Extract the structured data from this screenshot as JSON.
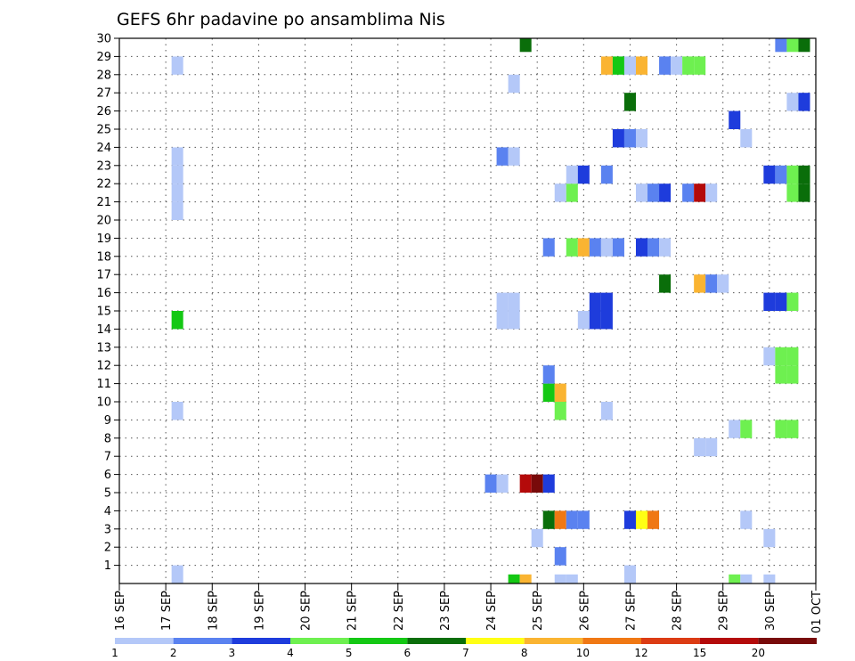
{
  "chart_data": {
    "type": "heatmap",
    "title": "GEFS 6hr padavine po ansamblima Nis",
    "x_tick_labels": [
      "16 SEP",
      "17 SEP",
      "18 SEP",
      "19 SEP",
      "20 SEP",
      "21 SEP",
      "22 SEP",
      "23 SEP",
      "24 SEP",
      "25 SEP",
      "26 SEP",
      "27 SEP",
      "28 SEP",
      "29 SEP",
      "30 SEP",
      "01 OCT"
    ],
    "y_tick_labels": [
      "1",
      "2",
      "3",
      "4",
      "5",
      "6",
      "7",
      "8",
      "9",
      "10",
      "11",
      "12",
      "13",
      "14",
      "15",
      "16",
      "17",
      "18",
      "19",
      "20",
      "21",
      "22",
      "23",
      "24",
      "25",
      "26",
      "27",
      "28",
      "29",
      "30"
    ],
    "x_range_days": [
      0,
      15
    ],
    "y_range": [
      0,
      30
    ],
    "grid": true,
    "colorbar": {
      "labels": [
        "1",
        "2",
        "3",
        "4",
        "5",
        "6",
        "7",
        "8",
        "10",
        "12",
        "15",
        "20"
      ],
      "colors": [
        "#b4c8f8",
        "#5a82f0",
        "#1e3cdc",
        "#6ef050",
        "#14c814",
        "#0a6e0a",
        "#ffff14",
        "#fab432",
        "#f07814",
        "#dc3c14",
        "#b40a0a",
        "#780a0a"
      ]
    },
    "cells": [
      {
        "day": 1.25,
        "y": 0.5,
        "v": 1
      },
      {
        "day": 1.25,
        "y": 9.5,
        "v": 1
      },
      {
        "day": 1.25,
        "y": 14.5,
        "v": 5
      },
      {
        "day": 1.25,
        "y": 20.5,
        "v": 1
      },
      {
        "day": 1.25,
        "y": 21.5,
        "v": 1
      },
      {
        "day": 1.25,
        "y": 22.5,
        "v": 1
      },
      {
        "day": 1.25,
        "y": 23.5,
        "v": 1
      },
      {
        "day": 1.25,
        "y": 28.5,
        "v": 1
      },
      {
        "day": 8.0,
        "y": 5.5,
        "v": 2
      },
      {
        "day": 8.25,
        "y": 5.5,
        "v": 1
      },
      {
        "day": 8.25,
        "y": 14.5,
        "v": 1
      },
      {
        "day": 8.5,
        "y": 14.5,
        "v": 1
      },
      {
        "day": 8.25,
        "y": 15.5,
        "v": 1
      },
      {
        "day": 8.5,
        "y": 15.5,
        "v": 1
      },
      {
        "day": 8.25,
        "y": 23.5,
        "v": 2
      },
      {
        "day": 8.5,
        "y": 23.5,
        "v": 1
      },
      {
        "day": 8.5,
        "y": 0.0,
        "v": 5
      },
      {
        "day": 8.75,
        "y": 0.0,
        "v": 8
      },
      {
        "day": 8.5,
        "y": 27.5,
        "v": 1
      },
      {
        "day": 8.75,
        "y": 5.5,
        "v": 15
      },
      {
        "day": 9.0,
        "y": 5.5,
        "v": 20
      },
      {
        "day": 9.25,
        "y": 5.5,
        "v": 3
      },
      {
        "day": 8.75,
        "y": 29.75,
        "v": 6
      },
      {
        "day": 9.0,
        "y": 2.5,
        "v": 1
      },
      {
        "day": 9.25,
        "y": 3.5,
        "v": 6
      },
      {
        "day": 9.5,
        "y": 3.5,
        "v": 10
      },
      {
        "day": 9.75,
        "y": 3.5,
        "v": 2
      },
      {
        "day": 10.0,
        "y": 3.5,
        "v": 2
      },
      {
        "day": 9.25,
        "y": 10.5,
        "v": 5
      },
      {
        "day": 9.5,
        "y": 10.5,
        "v": 8
      },
      {
        "day": 9.5,
        "y": 9.5,
        "v": 4
      },
      {
        "day": 9.25,
        "y": 11.5,
        "v": 2
      },
      {
        "day": 9.25,
        "y": 18.5,
        "v": 2
      },
      {
        "day": 9.5,
        "y": 1.5,
        "v": 2
      },
      {
        "day": 9.5,
        "y": 0.0,
        "v": 1
      },
      {
        "day": 9.75,
        "y": 0.0,
        "v": 1
      },
      {
        "day": 9.5,
        "y": 21.5,
        "v": 1
      },
      {
        "day": 9.75,
        "y": 21.5,
        "v": 4
      },
      {
        "day": 9.75,
        "y": 18.5,
        "v": 4
      },
      {
        "day": 10.0,
        "y": 18.5,
        "v": 8
      },
      {
        "day": 10.25,
        "y": 18.5,
        "v": 2
      },
      {
        "day": 10.5,
        "y": 18.5,
        "v": 1
      },
      {
        "day": 10.75,
        "y": 18.5,
        "v": 2
      },
      {
        "day": 9.75,
        "y": 22.5,
        "v": 1
      },
      {
        "day": 10.0,
        "y": 22.5,
        "v": 3
      },
      {
        "day": 10.5,
        "y": 22.5,
        "v": 2
      },
      {
        "day": 10.0,
        "y": 14.5,
        "v": 1
      },
      {
        "day": 10.25,
        "y": 14.5,
        "v": 3
      },
      {
        "day": 10.5,
        "y": 14.5,
        "v": 3
      },
      {
        "day": 10.25,
        "y": 15.5,
        "v": 3
      },
      {
        "day": 10.5,
        "y": 15.5,
        "v": 3
      },
      {
        "day": 10.5,
        "y": 9.5,
        "v": 1
      },
      {
        "day": 10.5,
        "y": 28.5,
        "v": 8
      },
      {
        "day": 10.75,
        "y": 28.5,
        "v": 5
      },
      {
        "day": 11.0,
        "y": 28.5,
        "v": 1
      },
      {
        "day": 11.25,
        "y": 28.5,
        "v": 8
      },
      {
        "day": 10.75,
        "y": 24.5,
        "v": 3
      },
      {
        "day": 11.0,
        "y": 24.5,
        "v": 2
      },
      {
        "day": 11.25,
        "y": 24.5,
        "v": 1
      },
      {
        "day": 11.0,
        "y": 0.5,
        "v": 1
      },
      {
        "day": 11.0,
        "y": 3.5,
        "v": 3
      },
      {
        "day": 11.25,
        "y": 3.5,
        "v": 7
      },
      {
        "day": 11.5,
        "y": 3.5,
        "v": 10
      },
      {
        "day": 11.0,
        "y": 26.5,
        "v": 6
      },
      {
        "day": 11.25,
        "y": 18.5,
        "v": 3
      },
      {
        "day": 11.5,
        "y": 18.5,
        "v": 2
      },
      {
        "day": 11.75,
        "y": 18.5,
        "v": 1
      },
      {
        "day": 11.25,
        "y": 21.5,
        "v": 1
      },
      {
        "day": 11.5,
        "y": 21.5,
        "v": 2
      },
      {
        "day": 11.75,
        "y": 21.5,
        "v": 3
      },
      {
        "day": 11.75,
        "y": 16.5,
        "v": 6
      },
      {
        "day": 11.75,
        "y": 28.5,
        "v": 2
      },
      {
        "day": 12.0,
        "y": 28.5,
        "v": 1
      },
      {
        "day": 12.25,
        "y": 28.5,
        "v": 4
      },
      {
        "day": 12.5,
        "y": 28.5,
        "v": 4
      },
      {
        "day": 12.25,
        "y": 21.5,
        "v": 2
      },
      {
        "day": 12.5,
        "y": 21.5,
        "v": 15
      },
      {
        "day": 12.75,
        "y": 21.5,
        "v": 1
      },
      {
        "day": 12.5,
        "y": 16.5,
        "v": 8
      },
      {
        "day": 12.75,
        "y": 16.5,
        "v": 2
      },
      {
        "day": 13.0,
        "y": 16.5,
        "v": 1
      },
      {
        "day": 12.5,
        "y": 7.5,
        "v": 1
      },
      {
        "day": 12.75,
        "y": 7.5,
        "v": 1
      },
      {
        "day": 13.25,
        "y": 0.0,
        "v": 4
      },
      {
        "day": 13.5,
        "y": 0.0,
        "v": 1
      },
      {
        "day": 13.25,
        "y": 8.5,
        "v": 1
      },
      {
        "day": 13.5,
        "y": 8.5,
        "v": 4
      },
      {
        "day": 13.5,
        "y": 3.5,
        "v": 1
      },
      {
        "day": 13.25,
        "y": 25.5,
        "v": 3
      },
      {
        "day": 13.5,
        "y": 24.5,
        "v": 1
      },
      {
        "day": 14.0,
        "y": 0.0,
        "v": 1
      },
      {
        "day": 14.0,
        "y": 2.5,
        "v": 1
      },
      {
        "day": 14.0,
        "y": 12.5,
        "v": 1
      },
      {
        "day": 14.25,
        "y": 12.5,
        "v": 4
      },
      {
        "day": 14.5,
        "y": 12.5,
        "v": 4
      },
      {
        "day": 14.25,
        "y": 11.5,
        "v": 4
      },
      {
        "day": 14.5,
        "y": 11.5,
        "v": 4
      },
      {
        "day": 14.25,
        "y": 8.5,
        "v": 4
      },
      {
        "day": 14.5,
        "y": 8.5,
        "v": 4
      },
      {
        "day": 14.0,
        "y": 15.5,
        "v": 3
      },
      {
        "day": 14.25,
        "y": 15.5,
        "v": 3
      },
      {
        "day": 14.5,
        "y": 15.5,
        "v": 4
      },
      {
        "day": 14.0,
        "y": 22.5,
        "v": 3
      },
      {
        "day": 14.25,
        "y": 22.5,
        "v": 2
      },
      {
        "day": 14.5,
        "y": 22.5,
        "v": 4
      },
      {
        "day": 14.75,
        "y": 22.5,
        "v": 6
      },
      {
        "day": 14.5,
        "y": 21.5,
        "v": 4
      },
      {
        "day": 14.75,
        "y": 21.5,
        "v": 6
      },
      {
        "day": 14.25,
        "y": 29.75,
        "v": 2
      },
      {
        "day": 14.5,
        "y": 29.75,
        "v": 4
      },
      {
        "day": 14.75,
        "y": 29.75,
        "v": 6
      },
      {
        "day": 14.5,
        "y": 26.5,
        "v": 1
      },
      {
        "day": 14.75,
        "y": 26.5,
        "v": 3
      }
    ]
  }
}
